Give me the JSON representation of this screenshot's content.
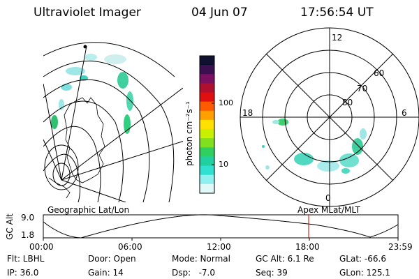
{
  "header": {
    "instrument": "Ultraviolet Imager",
    "date": "04 Jun 07",
    "time": "17:56:54 UT"
  },
  "colorbar": {
    "unit_label": "photon cm⁻²s⁻¹",
    "ticks": [
      "100",
      "10"
    ],
    "colors": [
      "#101030",
      "#3a1050",
      "#7a1060",
      "#b01030",
      "#e01010",
      "#ff5a00",
      "#ffa000",
      "#ffe000",
      "#c8f000",
      "#80e020",
      "#30d060",
      "#20d0a0",
      "#30e0d0",
      "#90f0f0",
      "#dff8f8"
    ]
  },
  "left_map": {
    "label": "Geographic Lat/Lon"
  },
  "polar_plot": {
    "label": "Apex MLat/MLT",
    "mlt_labels": {
      "top": "12",
      "left": "18",
      "right": "6",
      "bottom": "0"
    },
    "lat_labels": [
      "60",
      "70",
      "80"
    ]
  },
  "timeline": {
    "axis_label": "GC Alt",
    "y_ticks": [
      "9.0",
      "1.8"
    ],
    "x_ticks": [
      "00:00",
      "06:00",
      "12:00",
      "18:00",
      "23:59"
    ],
    "current_time_fraction": 0.748,
    "marker_color": "#cc0000"
  },
  "info": {
    "flt": "Flt: LBHL",
    "door": "Door: Open",
    "mode": "Mode: Normal",
    "gc_alt": "GC Alt: 6.1 Re",
    "glat": "GLat: -66.6",
    "ip": "IP: 36.0",
    "gain": "Gain: 14",
    "dsp": "Dsp:   -7.0",
    "seq": "Seq: 39",
    "glon": "GLon: 125.1"
  }
}
